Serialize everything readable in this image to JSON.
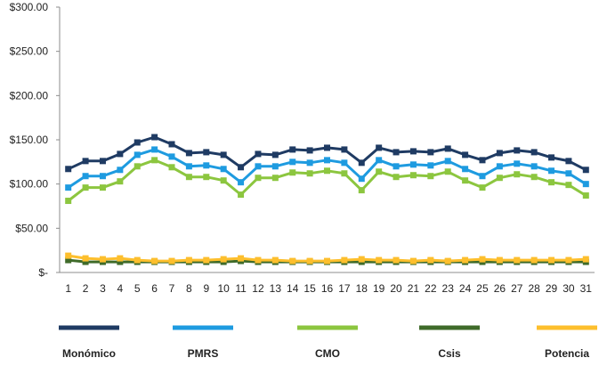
{
  "chart_data": {
    "type": "line",
    "title": "",
    "xlabel": "",
    "ylabel": "",
    "ylim": [
      0,
      300
    ],
    "grid": false,
    "legend_position": "bottom",
    "categories": [
      "1",
      "2",
      "3",
      "4",
      "5",
      "6",
      "7",
      "8",
      "9",
      "10",
      "11",
      "12",
      "13",
      "14",
      "15",
      "16",
      "17",
      "18",
      "19",
      "20",
      "21",
      "22",
      "23",
      "24",
      "25",
      "26",
      "27",
      "28",
      "29",
      "30",
      "31"
    ],
    "y_ticks": [
      {
        "value": 0,
        "label": "$-"
      },
      {
        "value": 50,
        "label": "$50.00"
      },
      {
        "value": 100,
        "label": "$100.00"
      },
      {
        "value": 150,
        "label": "$150.00"
      },
      {
        "value": 200,
        "label": "$200.00"
      },
      {
        "value": 250,
        "label": "$250.00"
      },
      {
        "value": 300,
        "label": "$300.00"
      }
    ],
    "series": [
      {
        "name": "Monómico",
        "color": "#1f3b63",
        "values": [
          117,
          126,
          126,
          134,
          147,
          153,
          145,
          135,
          136,
          133,
          119,
          134,
          133,
          139,
          138,
          141,
          139,
          124,
          141,
          136,
          137,
          136,
          140,
          133,
          127,
          135,
          138,
          136,
          130,
          126,
          116
        ]
      },
      {
        "name": "PMRS",
        "color": "#1e9be0",
        "values": [
          96,
          109,
          109,
          116,
          133,
          139,
          131,
          120,
          121,
          117,
          102,
          120,
          120,
          125,
          124,
          127,
          124,
          106,
          127,
          120,
          122,
          121,
          126,
          117,
          109,
          120,
          123,
          120,
          115,
          112,
          100
        ]
      },
      {
        "name": "CMO",
        "color": "#8cc63f",
        "values": [
          81,
          96,
          96,
          103,
          120,
          127,
          119,
          108,
          108,
          104,
          88,
          107,
          107,
          113,
          112,
          115,
          112,
          93,
          114,
          108,
          110,
          109,
          114,
          104,
          96,
          107,
          111,
          108,
          102,
          99,
          87
        ]
      },
      {
        "name": "Csis",
        "color": "#3f6b2a",
        "values": [
          14,
          12,
          12,
          12,
          12,
          12,
          12,
          12,
          12,
          12,
          13,
          12,
          12,
          12,
          12,
          12,
          12,
          12,
          12,
          12,
          12,
          12,
          12,
          12,
          12,
          12,
          12,
          12,
          12,
          12,
          12
        ]
      },
      {
        "name": "Potencia",
        "color": "#fdbf2d",
        "values": [
          19,
          16,
          15,
          16,
          14,
          13,
          13,
          14,
          14,
          15,
          16,
          14,
          14,
          13,
          13,
          13,
          14,
          15,
          14,
          14,
          13,
          14,
          13,
          14,
          15,
          14,
          14,
          14,
          14,
          14,
          15
        ]
      }
    ]
  }
}
